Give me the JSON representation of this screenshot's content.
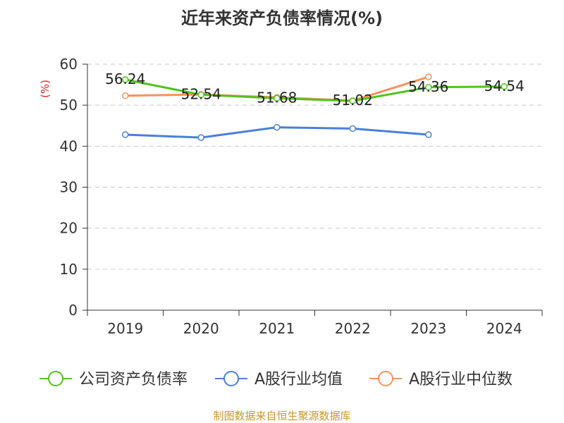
{
  "title": "近年来资产负债率情况(%)",
  "source": "制图数据来自恒生聚源数据库",
  "chart_data": {
    "type": "line",
    "unit": "(%)",
    "categories": [
      "2019",
      "2020",
      "2021",
      "2022",
      "2023",
      "2024"
    ],
    "ylim": [
      0,
      60
    ],
    "yticks": [
      0,
      10,
      20,
      30,
      40,
      50,
      60
    ],
    "grid": true,
    "legend_position": "bottom",
    "series": [
      {
        "name": "公司资产负债率",
        "color": "#52c41a",
        "labels": true,
        "values": [
          56.24,
          52.54,
          51.68,
          51.02,
          54.36,
          54.54
        ]
      },
      {
        "name": "A股行业均值",
        "color": "#4a7fd8",
        "labels": false,
        "values": [
          42.8,
          42.1,
          44.6,
          44.3,
          42.8,
          null
        ]
      },
      {
        "name": "A股行业中位数",
        "color": "#f7925a",
        "labels": false,
        "values": [
          52.3,
          52.6,
          51.9,
          51.1,
          56.9,
          null
        ]
      }
    ]
  }
}
